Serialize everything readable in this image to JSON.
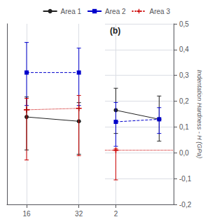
{
  "chart_data": [
    {
      "type": "line",
      "x": [
        16,
        32
      ],
      "series": [
        {
          "name": "Area 1",
          "color": "#222222",
          "line_style": "solid",
          "marker": "circle",
          "values": [
            0.055,
            0.04
          ],
          "yerr_lo": [
            0.115,
            0.115
          ],
          "yerr_hi": [
            0.07,
            0.065
          ]
        },
        {
          "name": "Area 2",
          "color": "#0000cc",
          "line_style": "dashed",
          "marker": "square",
          "values": [
            0.21,
            0.21
          ],
          "yerr_lo": [
            0.115,
            0.115
          ],
          "yerr_hi": [
            0.105,
            0.085
          ]
        },
        {
          "name": "Area 3",
          "color": "#cc0000",
          "line_style": "dotted",
          "marker": "plus",
          "values": [
            0.08,
            0.085
          ],
          "yerr_lo": [
            0.175,
            0.165
          ],
          "yerr_hi": [
            0.04,
            0.045
          ]
        }
      ],
      "xlim": [
        10,
        40
      ],
      "xticks": [
        16,
        32
      ],
      "ylim": [
        -0.25,
        0.38
      ],
      "yticks": [],
      "tick_labels": "x",
      "grid": true,
      "legend": "upper right"
    },
    {
      "type": "line",
      "annotation": "(b)",
      "ylabel": "Indentation Hardness - H (GPa)",
      "series": [
        {
          "name": "Area 1",
          "color": "#222222",
          "line_style": "solid",
          "marker": "circle",
          "x": [
            2,
            14
          ],
          "values": [
            0.165,
            0.13
          ],
          "yerr_lo": [
            0.09,
            0.085
          ],
          "yerr_hi": [
            0.085,
            0.09
          ]
        },
        {
          "name": "Area 2",
          "color": "#0000cc",
          "line_style": "dashed",
          "marker": "square",
          "x": [
            2,
            14
          ],
          "values": [
            0.12,
            0.13
          ],
          "yerr_lo": [
            0.095,
            0.055
          ],
          "yerr_hi": [
            0.075,
            0.045
          ]
        },
        {
          "name": "Area 3",
          "color": "#cc0000",
          "line_style": "dotted",
          "marker": "plus",
          "type": "hline",
          "x": [
            2
          ],
          "values": [
            0.01
          ],
          "yerr_lo": [
            0.115
          ],
          "yerr_hi": [
            0.005
          ]
        }
      ],
      "xlim": [
        -1,
        18
      ],
      "xticks": [
        2
      ],
      "ylim": [
        -0.2,
        0.5
      ],
      "yticks": [
        {
          "value": -0.2,
          "label": "-0,2"
        },
        {
          "value": -0.1,
          "label": "-0,1"
        },
        {
          "value": 0.0,
          "label": "0,0"
        },
        {
          "value": 0.1,
          "label": "0,1"
        },
        {
          "value": 0.2,
          "label": "0,2"
        },
        {
          "value": 0.3,
          "label": "0,3"
        },
        {
          "value": 0.4,
          "label": "0,4"
        },
        {
          "value": 0.5,
          "label": "0,5"
        }
      ],
      "grid": true
    }
  ]
}
